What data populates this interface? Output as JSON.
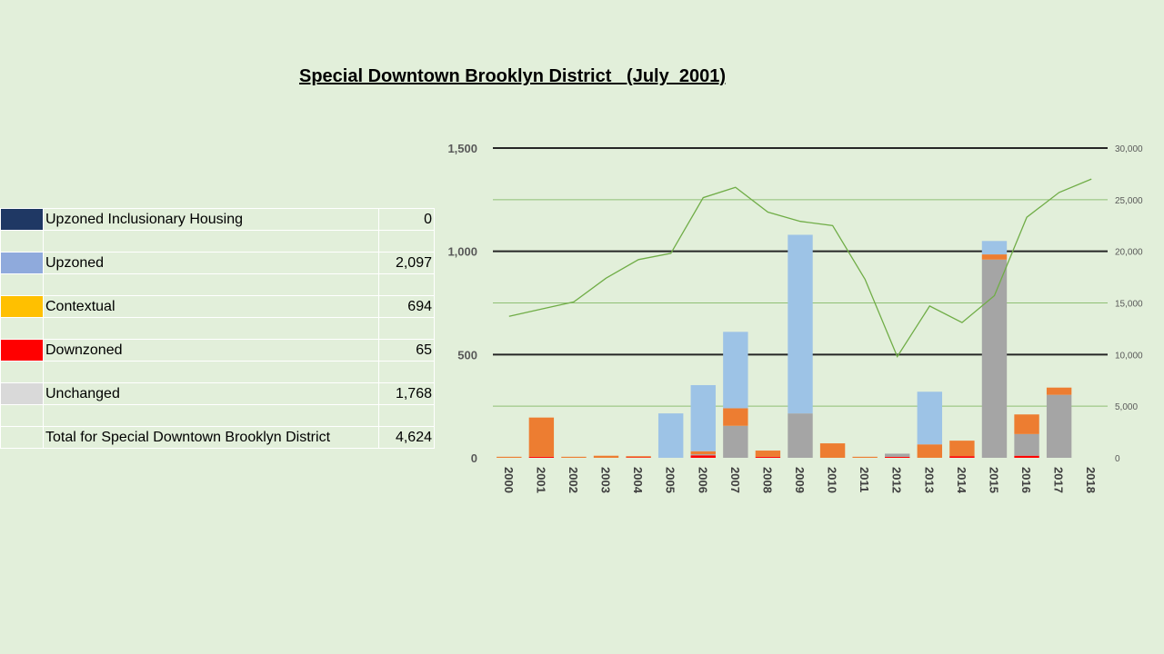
{
  "title": "Special Downtown Brooklyn District   (July  2001)",
  "legend_rows": [
    {
      "label": "Upzoned Inclusionary Housing",
      "value": "0",
      "color": "#1f3864"
    },
    {
      "label": "Upzoned",
      "value": "2,097",
      "color": "#8faadc"
    },
    {
      "label": "Contextual",
      "value": "694",
      "color": "#ffc000"
    },
    {
      "label": "Downzoned",
      "value": "65",
      "color": "#ff0000"
    },
    {
      "label": "Unchanged",
      "value": "1,768",
      "color": "#d9d9d9"
    },
    {
      "label": "Total for Special Downtown Brooklyn District",
      "value": "4,624",
      "color": ""
    }
  ],
  "chart_data": {
    "type": "bar",
    "stacked": true,
    "categories": [
      "2000",
      "2001",
      "2002",
      "2003",
      "2004",
      "2005",
      "2006",
      "2007",
      "2008",
      "2009",
      "2010",
      "2011",
      "2012",
      "2013",
      "2014",
      "2015",
      "2016",
      "2017",
      "2018"
    ],
    "series": [
      {
        "color": "#ff0000",
        "values": [
          0,
          5,
          0,
          0,
          3,
          0,
          12,
          0,
          5,
          0,
          0,
          0,
          5,
          0,
          8,
          0,
          10,
          0,
          0
        ]
      },
      {
        "color": "#a5a5a5",
        "values": [
          0,
          0,
          0,
          0,
          0,
          0,
          5,
          155,
          0,
          215,
          0,
          0,
          15,
          0,
          0,
          960,
          105,
          305,
          0
        ]
      },
      {
        "color": "#ed7d31",
        "values": [
          5,
          190,
          5,
          10,
          5,
          0,
          15,
          85,
          30,
          0,
          70,
          5,
          0,
          65,
          75,
          25,
          95,
          35,
          0
        ]
      },
      {
        "color": "#9dc3e6",
        "values": [
          0,
          0,
          0,
          0,
          0,
          215,
          320,
          370,
          0,
          865,
          0,
          0,
          0,
          255,
          0,
          65,
          0,
          0,
          0
        ]
      }
    ],
    "line": {
      "color": "#70ad47",
      "axis": "secondary",
      "values": [
        13700,
        14400,
        15100,
        17400,
        19200,
        19800,
        25200,
        26200,
        23800,
        22900,
        22500,
        17300,
        9800,
        14700,
        13100,
        15700,
        23300,
        25700,
        27000
      ]
    },
    "y_ticks": [
      "0",
      "500",
      "1,000",
      "1,500"
    ],
    "y2_ticks": [
      "0",
      "5,000",
      "10,000",
      "15,000",
      "20,000",
      "25,000",
      "30,000"
    ],
    "ylim": [
      0,
      1500
    ],
    "y2lim": [
      0,
      30000
    ],
    "grid": true
  }
}
